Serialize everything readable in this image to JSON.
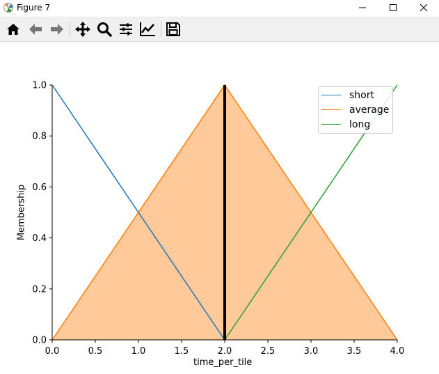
{
  "window": {
    "title": "Figure 7",
    "app_icon": "matplotlib-icon",
    "controls": [
      "minimize-icon",
      "maximize-icon",
      "close-icon"
    ]
  },
  "toolbar": {
    "buttons": [
      "home-icon",
      "back-arrow-icon",
      "forward-arrow-icon",
      "pan-icon",
      "zoom-icon",
      "configure-subplots-icon",
      "edit-axes-icon",
      "save-icon"
    ]
  },
  "chart_data": {
    "type": "line",
    "title": "",
    "xlabel": "time_per_tile",
    "ylabel": "Membership",
    "xlim": [
      0,
      4
    ],
    "ylim": [
      0,
      1
    ],
    "xticks": [
      "0.0",
      "0.5",
      "1.0",
      "1.5",
      "2.0",
      "2.5",
      "3.0",
      "3.5",
      "4.0"
    ],
    "yticks": [
      "0.0",
      "0.2",
      "0.4",
      "0.6",
      "0.8",
      "1.0"
    ],
    "grid": false,
    "legend_position": "top-right",
    "series": [
      {
        "name": "short",
        "color": "#1f77b4",
        "x": [
          0,
          2
        ],
        "y": [
          1,
          0
        ]
      },
      {
        "name": "average",
        "color": "#ff7f0e",
        "x": [
          0,
          2,
          4
        ],
        "y": [
          0,
          1,
          0
        ],
        "filled": true,
        "fill_color": "#ffc999"
      },
      {
        "name": "long",
        "color": "#2ca02c",
        "x": [
          2,
          4
        ],
        "y": [
          0,
          1
        ]
      }
    ],
    "annotations": [
      {
        "type": "vertical-line",
        "x": 2,
        "y_from": 0,
        "y_to": 1,
        "color": "#000000"
      }
    ]
  }
}
